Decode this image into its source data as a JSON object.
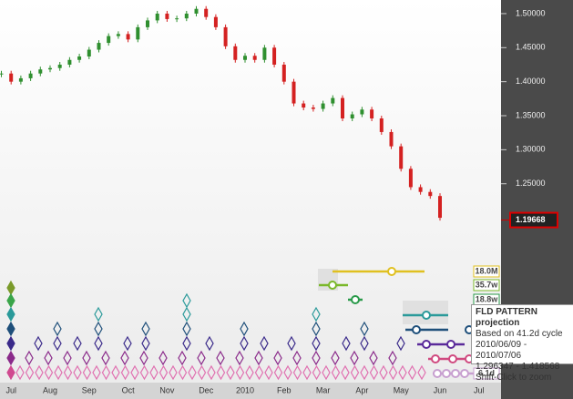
{
  "chart_data": {
    "type": "candlestick",
    "categories": [
      null,
      "Jul",
      null,
      null,
      null,
      "Aug",
      null,
      null,
      null,
      "Sep",
      null,
      null,
      null,
      "Oct",
      null,
      null,
      null,
      "Nov",
      null,
      null,
      null,
      "Dec",
      null,
      null,
      null,
      "2010",
      null,
      null,
      null,
      "Feb",
      null,
      null,
      null,
      "Mar",
      null,
      null,
      null,
      "Apr",
      null,
      null,
      null,
      "May",
      null,
      null,
      null,
      "Jun",
      null,
      null,
      null,
      "Jul"
    ],
    "values": [
      1.412,
      1.4,
      1.405,
      1.412,
      1.418,
      1.42,
      1.425,
      1.432,
      1.437,
      1.447,
      1.457,
      1.467,
      1.47,
      1.462,
      1.48,
      1.49,
      1.5,
      1.492,
      1.493,
      1.5,
      1.507,
      1.495,
      1.48,
      1.452,
      1.432,
      1.438,
      1.432,
      1.45,
      1.425,
      1.4,
      1.368,
      1.362,
      1.36,
      1.368,
      1.376,
      1.346,
      1.352,
      1.359,
      1.346,
      1.326,
      1.305,
      1.272,
      1.245,
      1.238,
      1.232,
      1.2,
      null,
      null,
      null,
      null
    ],
    "up_color": "#2f8f2f",
    "down_color": "#d42121",
    "ylim": [
      1.172,
      1.52
    ],
    "yticks": [
      {
        "value": 1.5,
        "label": "1.50000"
      },
      {
        "value": 1.45,
        "label": "1.45000"
      },
      {
        "value": 1.4,
        "label": "1.40000"
      },
      {
        "value": 1.35,
        "label": "1.35000"
      },
      {
        "value": 1.3,
        "label": "1.30000"
      },
      {
        "value": 1.25,
        "label": "1.25000"
      }
    ],
    "last_price": 1.19668,
    "cycle_labels": [
      "18.0M",
      "35.7w",
      "18.8w",
      "6.1d"
    ],
    "tooltip": {
      "title": "FLD PATTERN projection",
      "lines": [
        "Based on 41.2d cycle",
        "2010/06/09 - 2010/07/06",
        "1.296347 - 1.418568",
        "Shift-Click to zoom"
      ]
    }
  }
}
